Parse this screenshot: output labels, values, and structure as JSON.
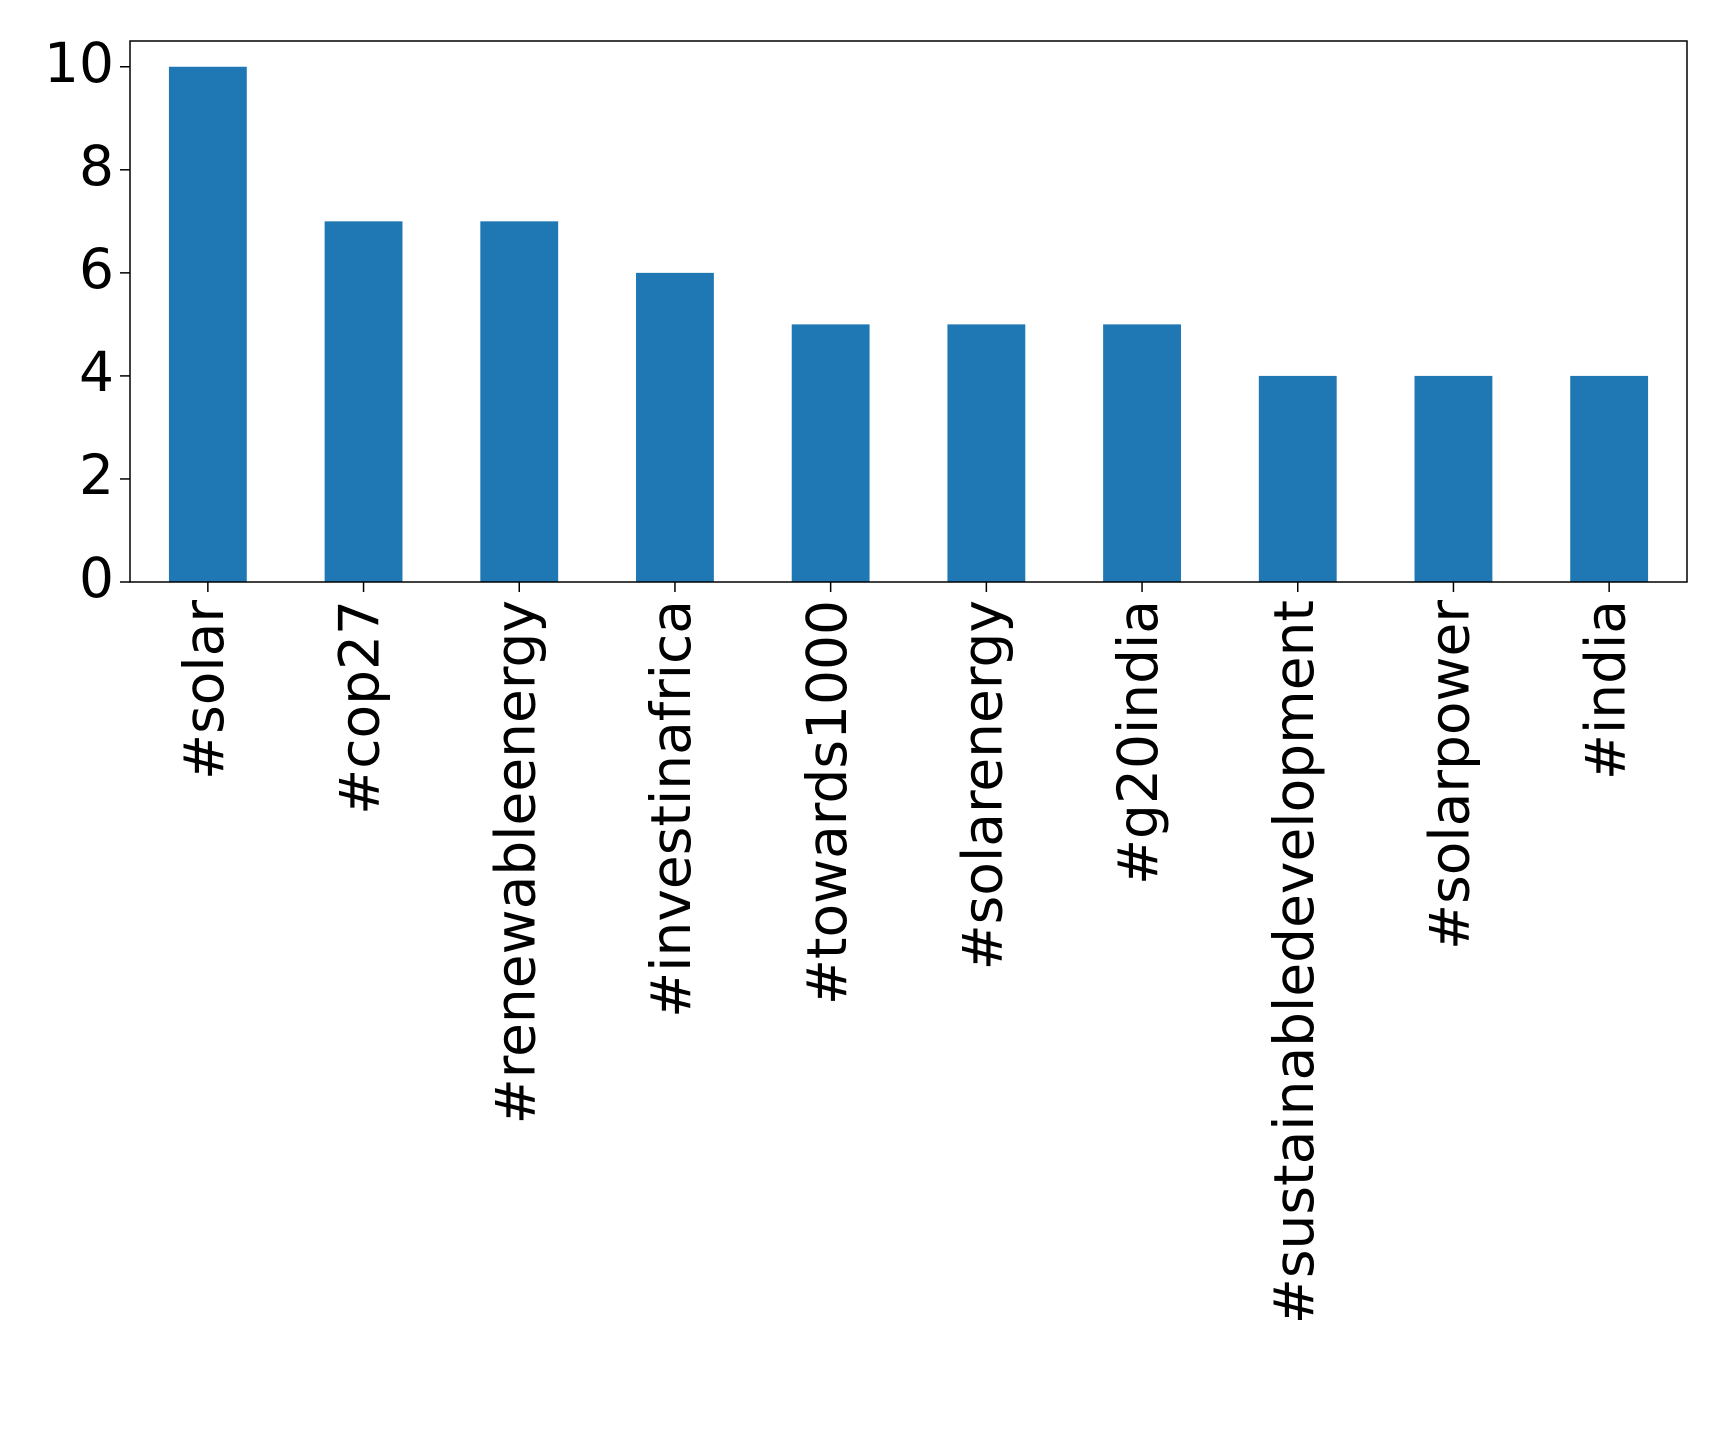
{
  "chart_data": {
    "type": "bar",
    "categories": [
      "#solar",
      "#cop27",
      "#renewableenergy",
      "#investinafrica",
      "#towards1000",
      "#solarenergy",
      "#g20india",
      "#sustainabledevelopment",
      "#solarpower",
      "#india"
    ],
    "values": [
      10,
      7,
      7,
      6,
      5,
      5,
      5,
      4,
      4,
      4
    ],
    "color": "#1f77b4",
    "ylim": [
      0,
      10.5
    ],
    "yticks": [
      0,
      2,
      4,
      6,
      8,
      10
    ],
    "grid": false
  }
}
